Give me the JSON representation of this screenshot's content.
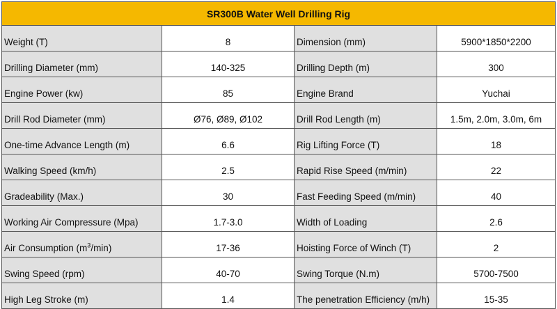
{
  "table": {
    "title": "SR300B Water Well Drilling Rig",
    "rows": [
      {
        "label_left": "Weight (T)",
        "value_left": "8",
        "label_right": "Dimension (mm)",
        "value_right": "5900*1850*2200"
      },
      {
        "label_left": "Drilling Diameter (mm)",
        "value_left": "140-325",
        "label_right": "Drilling Depth (m)",
        "value_right": "300"
      },
      {
        "label_left": "Engine Power (kw)",
        "value_left": "85",
        "label_right": "Engine Brand",
        "value_right": "Yuchai"
      },
      {
        "label_left": "Drill Rod Diameter (mm)",
        "value_left": "Ø76, Ø89, Ø102",
        "label_right": "Drill Rod Length (m)",
        "value_right": "1.5m, 2.0m, 3.0m, 6m"
      },
      {
        "label_left": "One-time Advance Length (m)",
        "value_left": "6.6",
        "label_right": "Rig Lifting Force (T)",
        "value_right": "18"
      },
      {
        "label_left": "Walking Speed (km/h)",
        "value_left": "2.5",
        "label_right": "Rapid Rise Speed (m/min)",
        "value_right": "22"
      },
      {
        "label_left": "Gradeability (Max.)",
        "value_left": "30",
        "label_right": "Fast Feeding Speed (m/min)",
        "value_right": "40"
      },
      {
        "label_left": "Working Air Compressure (Mpa)",
        "value_left": "1.7-3.0",
        "label_right": "Width of Loading",
        "value_right": "2.6"
      },
      {
        "label_left_pre": "Air Consumption (m",
        "label_left_sup": "3",
        "label_left_post": "/min)",
        "value_left": "17-36",
        "label_right": "Hoisting Force of Winch (T)",
        "value_right": "2"
      },
      {
        "label_left": "Swing Speed (rpm)",
        "value_left": "40-70",
        "label_right": "Swing Torque (N.m)",
        "value_right": "5700-7500"
      },
      {
        "label_left": "High Leg Stroke (m)",
        "value_left": "1.4",
        "label_right": "The penetration Efficiency (m/h)",
        "value_right": "15-35"
      }
    ]
  }
}
